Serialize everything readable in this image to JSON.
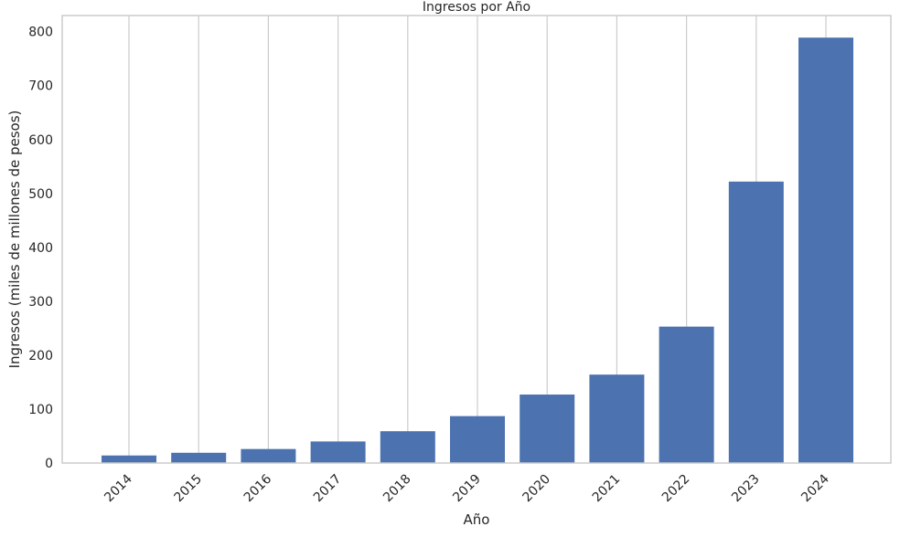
{
  "chart_data": {
    "type": "bar",
    "title": "Ingresos por Año",
    "xlabel": "Año",
    "ylabel": "Ingresos (miles de millones de pesos)",
    "categories": [
      "2014",
      "2015",
      "2016",
      "2017",
      "2018",
      "2019",
      "2020",
      "2021",
      "2022",
      "2023",
      "2024"
    ],
    "values": [
      14,
      19,
      26,
      40,
      59,
      87,
      127,
      164,
      253,
      522,
      789
    ],
    "ylim": [
      0,
      830
    ],
    "yticks": [
      0,
      100,
      200,
      300,
      400,
      500,
      600,
      700,
      800
    ],
    "grid": "vertical",
    "bar_color": "#4c72b0",
    "grid_color": "#cccccc",
    "frame_color": "#cccccc"
  }
}
